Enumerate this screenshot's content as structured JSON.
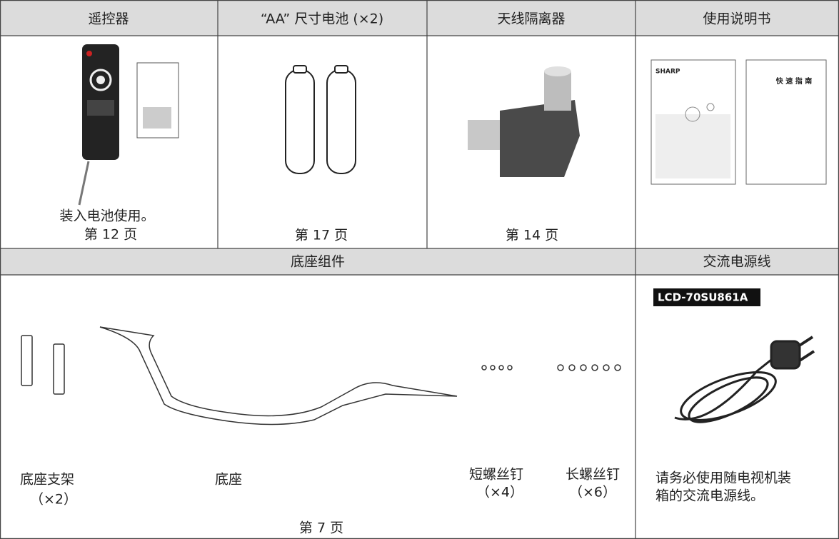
{
  "headers": [
    "遥控器",
    "“AA” 尺寸电池 (×2)",
    "天线隔离器",
    "使用说明书"
  ],
  "remote": {
    "note": "装入电池使用。",
    "page": "第 12 页"
  },
  "batteries": {
    "page": "第 17 页"
  },
  "antenna": {
    "page": "第 14 页"
  },
  "manual": {
    "brand": "SHARP",
    "quick_guide": "快 速 指 南"
  },
  "section_headers": [
    "底座组件",
    "交流电源线"
  ],
  "stand": {
    "bracket": "底座支架",
    "bracket_qty": "（×2）",
    "base": "底座",
    "short_screw": "短螺丝钉",
    "short_qty": "（×4）",
    "long_screw": "长螺丝钉",
    "long_qty": "（×6）",
    "page": "第 7 页"
  },
  "power_cord": {
    "model": "LCD-70SU861A",
    "note": [
      "请务必使用随电视机装",
      "箱的交流电源线。"
    ]
  }
}
